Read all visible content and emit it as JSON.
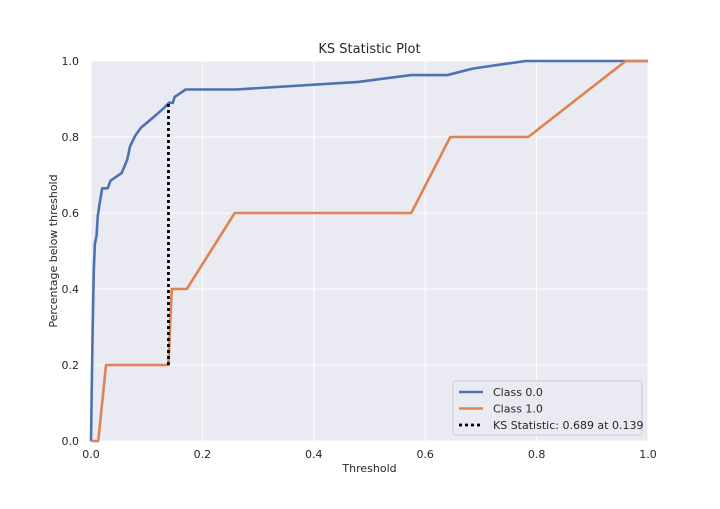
{
  "chart_data": {
    "type": "line",
    "title": "KS Statistic Plot",
    "xlabel": "Threshold",
    "ylabel": "Percentage below threshold",
    "xlim": [
      0.0,
      1.0
    ],
    "ylim": [
      0.0,
      1.0
    ],
    "x_ticks": [
      "0.0",
      "0.2",
      "0.4",
      "0.6",
      "0.8",
      "1.0"
    ],
    "y_ticks": [
      "0.0",
      "0.2",
      "0.4",
      "0.6",
      "0.8",
      "1.0"
    ],
    "grid": true,
    "legend_position": "bottom-right",
    "background_color": "#eaeaf2",
    "series": [
      {
        "name": "Class 0.0",
        "color": "#4c72b0",
        "x": [
          0.0,
          0.003,
          0.005,
          0.007,
          0.01,
          0.012,
          0.015,
          0.02,
          0.03,
          0.035,
          0.055,
          0.065,
          0.07,
          0.08,
          0.09,
          0.1,
          0.12,
          0.13,
          0.14,
          0.147,
          0.15,
          0.17,
          0.26,
          0.48,
          0.575,
          0.64,
          0.685,
          0.78,
          0.96,
          1.0
        ],
        "y": [
          0.0,
          0.3,
          0.45,
          0.52,
          0.54,
          0.59,
          0.62,
          0.665,
          0.665,
          0.685,
          0.705,
          0.74,
          0.775,
          0.805,
          0.825,
          0.837,
          0.862,
          0.875,
          0.89,
          0.89,
          0.905,
          0.925,
          0.925,
          0.945,
          0.963,
          0.963,
          0.98,
          1.0,
          1.0,
          1.0
        ]
      },
      {
        "name": "Class 1.0",
        "color": "#dd8452",
        "x": [
          0.0,
          0.013,
          0.027,
          0.139,
          0.145,
          0.172,
          0.258,
          0.575,
          0.645,
          0.785,
          0.96,
          1.0
        ],
        "y": [
          0.0,
          0.0,
          0.2,
          0.2,
          0.4,
          0.4,
          0.6,
          0.6,
          0.8,
          0.8,
          1.0,
          1.0
        ]
      }
    ],
    "ks_statistic": {
      "label": "KS Statistic: 0.689 at 0.139",
      "x": 0.139,
      "y_low": 0.2,
      "y_high": 0.889,
      "color": "#000000"
    }
  }
}
